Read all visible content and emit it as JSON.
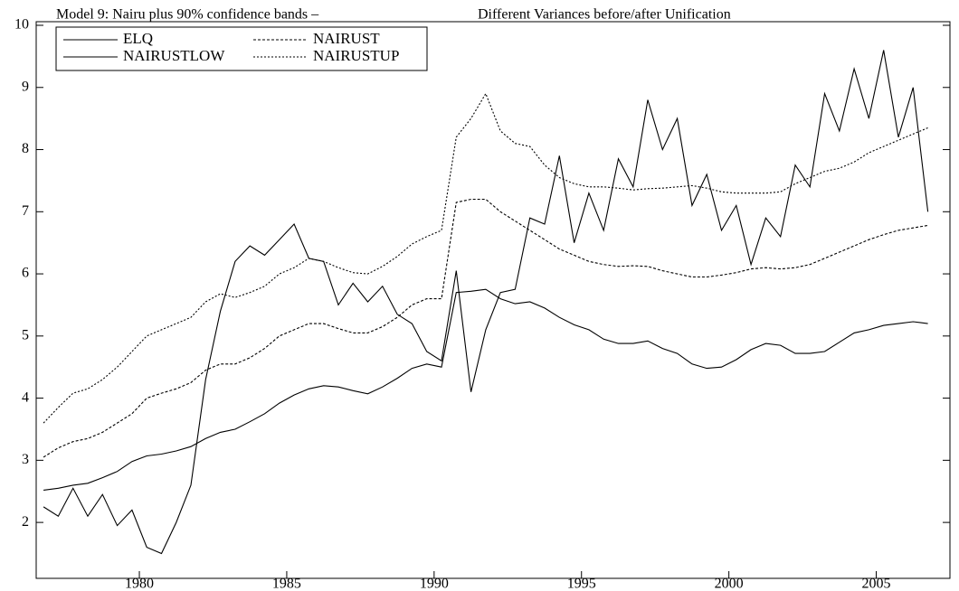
{
  "chart_data": {
    "type": "line",
    "title": "Model 9: Nairu plus 90% confidence bands –",
    "subtitle": "Different Variances before/after Unification",
    "x": [
      1976.75,
      1977.25,
      1977.75,
      1978.25,
      1978.75,
      1979.25,
      1979.75,
      1980.25,
      1980.75,
      1981.25,
      1981.75,
      1982.25,
      1982.75,
      1983.25,
      1983.75,
      1984.25,
      1984.75,
      1985.25,
      1985.75,
      1986.25,
      1986.75,
      1987.25,
      1987.75,
      1988.25,
      1988.75,
      1989.25,
      1989.75,
      1990.25,
      1990.75,
      1991.25,
      1991.75,
      1992.25,
      1992.75,
      1993.25,
      1993.75,
      1994.25,
      1994.75,
      1995.25,
      1995.75,
      1996.25,
      1996.75,
      1997.25,
      1997.75,
      1998.25,
      1998.75,
      1999.25,
      1999.75,
      2000.25,
      2000.75,
      2001.25,
      2001.75,
      2002.25,
      2002.75,
      2003.25,
      2003.75,
      2004.25,
      2004.75,
      2005.25,
      2005.75,
      2006.25,
      2006.75
    ],
    "series": [
      {
        "name": "ELQ",
        "color": "#000000",
        "dash": "none",
        "values": [
          2.25,
          2.1,
          2.55,
          2.1,
          2.45,
          1.95,
          2.2,
          1.6,
          1.5,
          2.0,
          2.6,
          4.3,
          5.4,
          6.2,
          6.45,
          6.3,
          6.55,
          6.8,
          6.25,
          6.2,
          5.5,
          5.85,
          5.55,
          5.8,
          5.35,
          5.2,
          4.75,
          4.6,
          6.05,
          4.1,
          5.1,
          5.7,
          5.75,
          6.9,
          6.8,
          7.9,
          6.5,
          7.3,
          6.7,
          7.85,
          7.4,
          8.8,
          8.0,
          8.5,
          7.1,
          7.6,
          6.7,
          7.1,
          6.15,
          6.9,
          6.6,
          7.75,
          7.4,
          8.9,
          8.3,
          9.3,
          8.5,
          9.6,
          8.2,
          9.0,
          7.0
        ]
      },
      {
        "name": "NAIRUST",
        "color": "#000000",
        "dash": "3,2",
        "values": [
          3.05,
          3.2,
          3.3,
          3.35,
          3.45,
          3.6,
          3.75,
          4.0,
          4.08,
          4.15,
          4.25,
          4.45,
          4.55,
          4.55,
          4.65,
          4.8,
          5.0,
          5.1,
          5.2,
          5.2,
          5.12,
          5.05,
          5.05,
          5.15,
          5.3,
          5.5,
          5.6,
          5.6,
          7.15,
          7.2,
          7.2,
          7.0,
          6.85,
          6.7,
          6.55,
          6.4,
          6.3,
          6.2,
          6.15,
          6.12,
          6.13,
          6.12,
          6.05,
          6.0,
          5.95,
          5.95,
          5.98,
          6.02,
          6.08,
          6.1,
          6.08,
          6.1,
          6.15,
          6.25,
          6.35,
          6.45,
          6.55,
          6.63,
          6.7,
          6.74,
          6.78
        ]
      },
      {
        "name": "NAIRUSTLOW",
        "color": "#000000",
        "dash": "none",
        "values": [
          2.52,
          2.55,
          2.6,
          2.63,
          2.72,
          2.82,
          2.98,
          3.07,
          3.1,
          3.15,
          3.22,
          3.35,
          3.45,
          3.5,
          3.62,
          3.75,
          3.92,
          4.05,
          4.15,
          4.2,
          4.18,
          4.12,
          4.07,
          4.18,
          4.32,
          4.48,
          4.55,
          4.5,
          5.7,
          5.72,
          5.75,
          5.6,
          5.52,
          5.55,
          5.45,
          5.3,
          5.18,
          5.1,
          4.95,
          4.88,
          4.88,
          4.92,
          4.8,
          4.72,
          4.55,
          4.48,
          4.5,
          4.62,
          4.78,
          4.88,
          4.85,
          4.72,
          4.72,
          4.75,
          4.9,
          5.05,
          5.1,
          5.17,
          5.2,
          5.23,
          5.2
        ]
      },
      {
        "name": "NAIRUSTUP",
        "color": "#000000",
        "dash": "2,2",
        "values": [
          3.6,
          3.85,
          4.08,
          4.15,
          4.3,
          4.5,
          4.75,
          5.0,
          5.1,
          5.2,
          5.3,
          5.55,
          5.68,
          5.62,
          5.7,
          5.8,
          6.0,
          6.1,
          6.25,
          6.2,
          6.1,
          6.02,
          6.0,
          6.12,
          6.28,
          6.48,
          6.6,
          6.7,
          8.2,
          8.5,
          8.9,
          8.3,
          8.1,
          8.05,
          7.75,
          7.55,
          7.45,
          7.4,
          7.4,
          7.38,
          7.35,
          7.37,
          7.38,
          7.4,
          7.42,
          7.38,
          7.32,
          7.3,
          7.3,
          7.3,
          7.32,
          7.45,
          7.55,
          7.65,
          7.7,
          7.8,
          7.95,
          8.05,
          8.15,
          8.25,
          8.35
        ]
      }
    ],
    "xlim": [
      1976.5,
      2007.5
    ],
    "xticks": [
      1980,
      1985,
      1990,
      1995,
      2000,
      2005
    ],
    "ylim": [
      1.1,
      10
    ],
    "yticks": [
      2,
      3,
      4,
      5,
      6,
      7,
      8,
      9,
      10
    ],
    "legend": "top-left"
  }
}
